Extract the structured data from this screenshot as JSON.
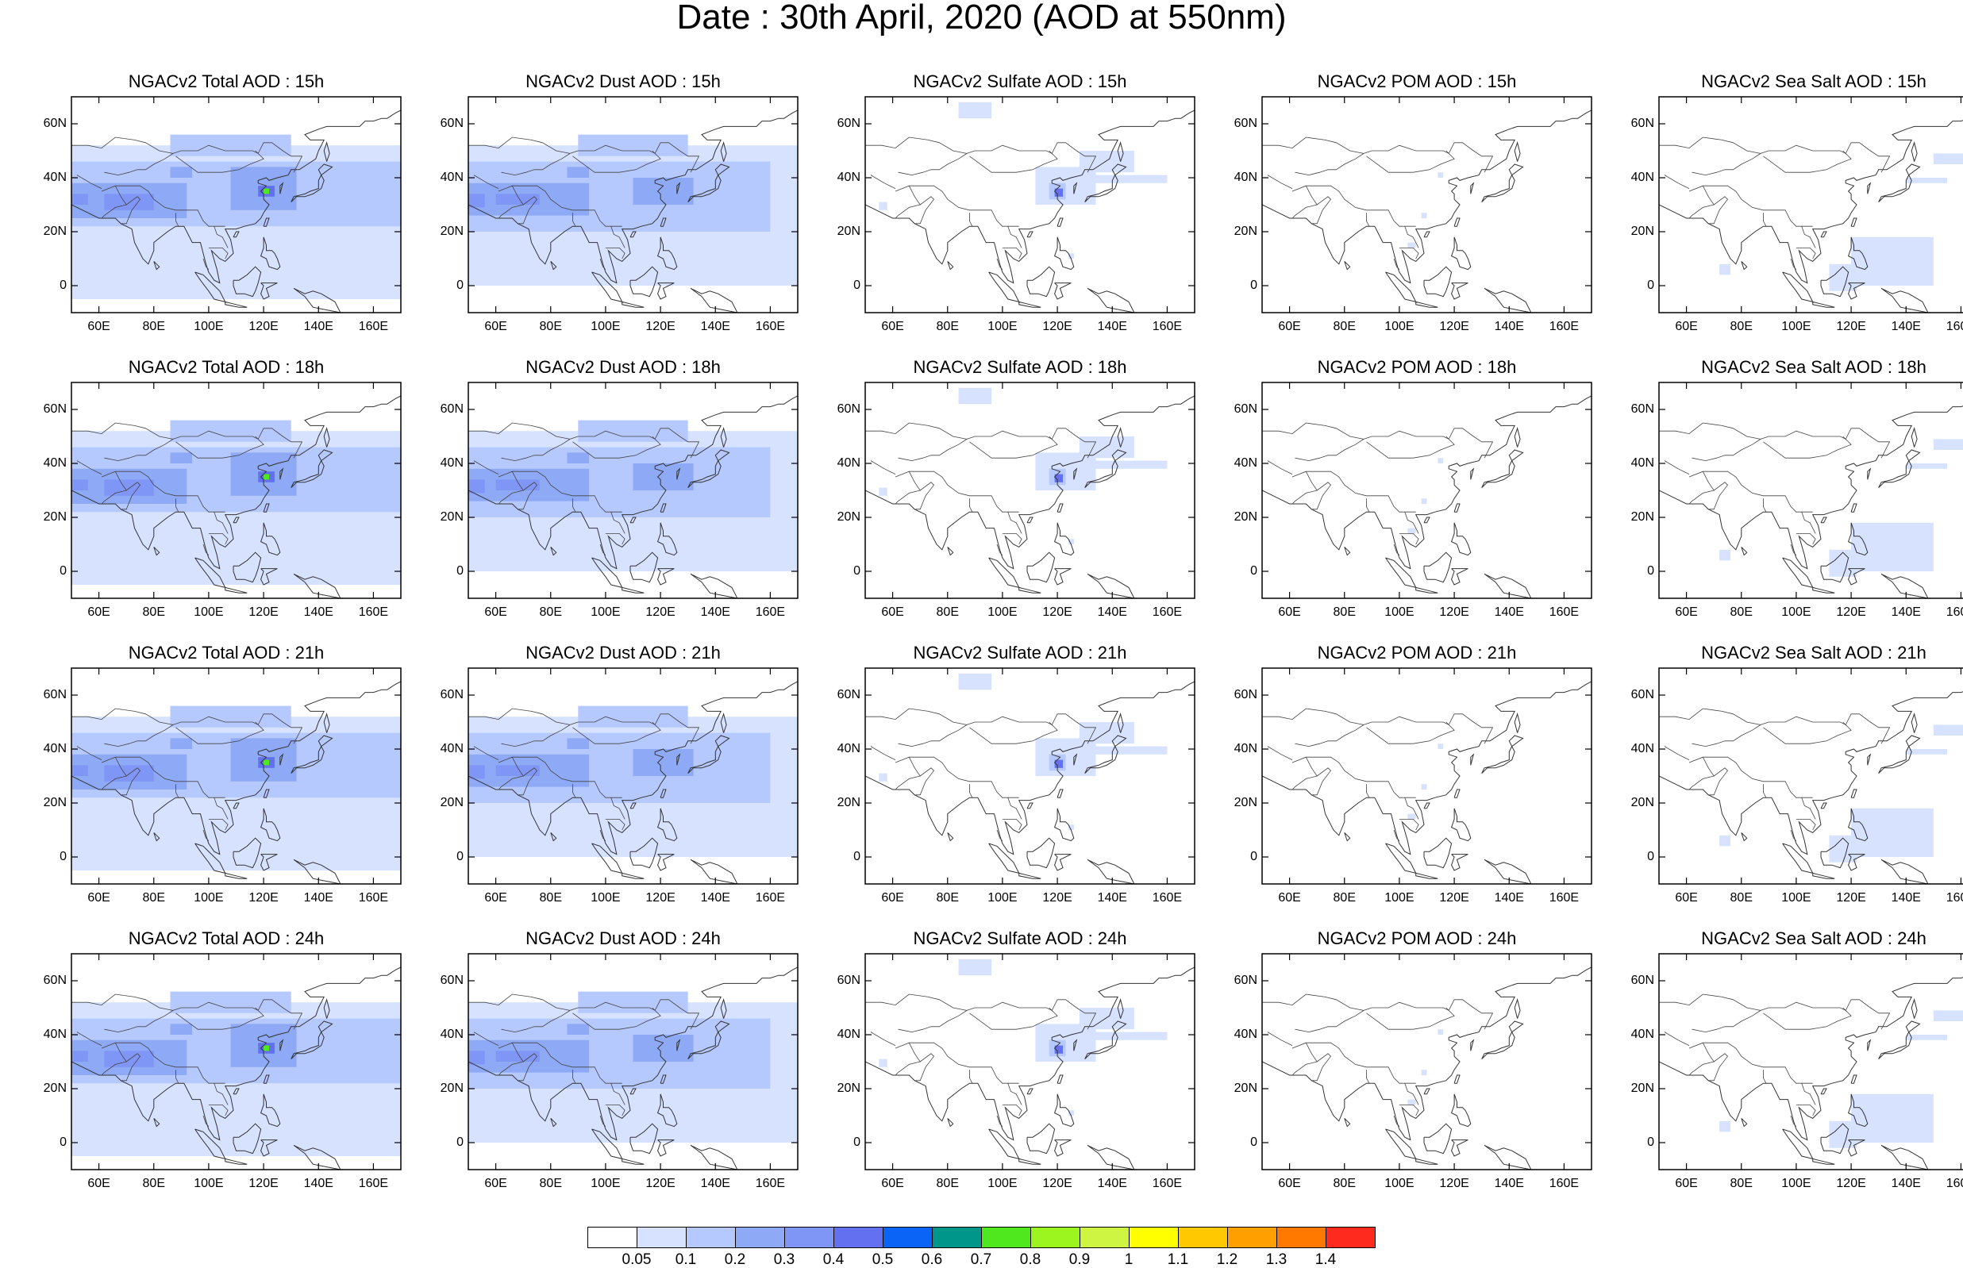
{
  "title": "Date : 30th April, 2020 (AOD at 550nm)",
  "lat_ticks": [
    "60N",
    "40N",
    "20N",
    "0"
  ],
  "lon_ticks": [
    "60E",
    "80E",
    "100E",
    "120E",
    "140E",
    "160E"
  ],
  "rows": [
    [
      "NGACv2 Total AOD : 15h",
      "NGACv2 Dust AOD : 15h",
      "NGACv2 Sulfate AOD : 15h",
      "NGACv2 POM AOD : 15h",
      "NGACv2 Sea Salt AOD : 15h"
    ],
    [
      "NGACv2 Total AOD : 18h",
      "NGACv2 Dust AOD : 18h",
      "NGACv2 Sulfate AOD : 18h",
      "NGACv2 POM AOD : 18h",
      "NGACv2 Sea Salt AOD : 18h"
    ],
    [
      "NGACv2 Total AOD : 21h",
      "NGACv2 Dust AOD : 21h",
      "NGACv2 Sulfate AOD : 21h",
      "NGACv2 POM AOD : 21h",
      "NGACv2 Sea Salt AOD : 21h"
    ],
    [
      "NGACv2 Total AOD : 24h",
      "NGACv2 Dust AOD : 24h",
      "NGACv2 Sulfate AOD : 24h",
      "NGACv2 POM AOD : 24h",
      "NGACv2 Sea Salt  AOD : 24h"
    ]
  ],
  "colorbar": {
    "labels": [
      "0.05",
      "0.1",
      "0.2",
      "0.3",
      "0.4",
      "0.5",
      "0.6",
      "0.7",
      "0.8",
      "0.9",
      "1",
      "1.1",
      "1.2",
      "1.3",
      "1.4"
    ],
    "colors": [
      "#ffffff",
      "#d6e2ff",
      "#b5c9ff",
      "#8eaaf7",
      "#7f96f7",
      "#6370f0",
      "#0a64f5",
      "#00968a",
      "#4fe81e",
      "#9cf51e",
      "#cdf542",
      "#ffff00",
      "#ffc800",
      "#ffa000",
      "#ff7800",
      "#ff2a1e"
    ]
  }
}
